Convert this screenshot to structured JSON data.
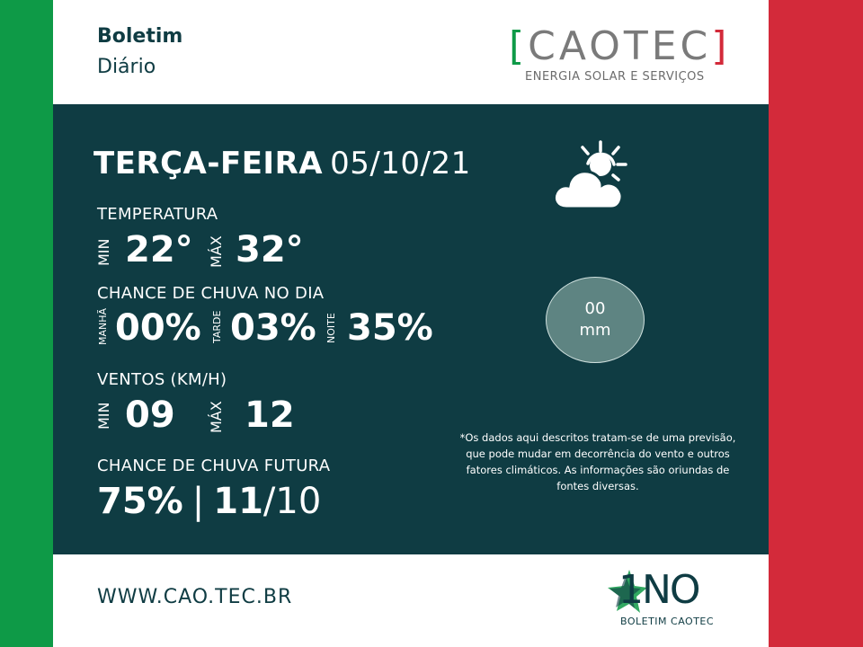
{
  "header": {
    "title": "Boletim",
    "subtitle": "Diário"
  },
  "logo": {
    "open": "[",
    "name": "CAOTEC",
    "close": "]",
    "tagline": "ENERGIA SOLAR E SERVIÇOS"
  },
  "day": {
    "weekday": "TERÇA-FEIRA",
    "date": "05/10/21"
  },
  "temperature": {
    "label": "TEMPERATURA",
    "min_label": "MIN",
    "min": "22°",
    "max_label": "MÁX",
    "max": "32°"
  },
  "rain_today": {
    "label": "CHANCE DE CHUVA NO DIA",
    "morning_label": "MANHÃ",
    "morning": "00%",
    "afternoon_label": "TARDE",
    "afternoon": "03%",
    "night_label": "NOITE",
    "night": "35%"
  },
  "wind": {
    "label": "VENTOS (KM/H)",
    "min_label": "MIN",
    "min": "09",
    "max_label": "MÁX",
    "max": "12"
  },
  "future_rain": {
    "label": "CHANCE DE CHUVA FUTURA",
    "percent": "75%",
    "separator": "|",
    "day": "11",
    "month": "/10"
  },
  "rain_amount": {
    "value": "00",
    "unit": "mm"
  },
  "weather_icon": "partly-cloudy-icon",
  "note": "*Os dados aqui descritos tratam-se de uma previsão, que pode mudar em decorrência do vento e outros fatores climáticos. As informações são oriundas de fontes diversas.",
  "footer": {
    "url": "WWW.CAO.TEC.BR",
    "badge": "1NO",
    "badge_sub": "BOLETIM CAOTEC"
  },
  "colors": {
    "green": "#0e9a47",
    "red": "#d32a3a",
    "panel": "#0f3c43",
    "rain_circle": "#5e8482"
  }
}
